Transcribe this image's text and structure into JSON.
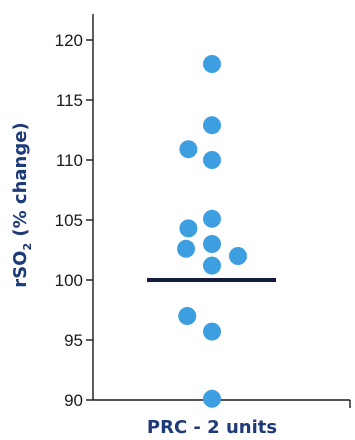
{
  "chart_data": {
    "type": "scatter",
    "category": "PRC - 2 units",
    "ylabel_main": "rSO",
    "ylabel_sub": "2",
    "ylabel_rest": " (% change)",
    "ylim": [
      90,
      120
    ],
    "yticks": [
      90,
      95,
      100,
      105,
      110,
      115,
      120
    ],
    "points": [
      {
        "x": 0.0,
        "y": 118.0
      },
      {
        "x": 0.0,
        "y": 112.9
      },
      {
        "x": -0.2,
        "y": 110.9
      },
      {
        "x": 0.0,
        "y": 110.0
      },
      {
        "x": 0.0,
        "y": 105.1
      },
      {
        "x": -0.2,
        "y": 104.3
      },
      {
        "x": -0.22,
        "y": 102.6
      },
      {
        "x": 0.0,
        "y": 103.0
      },
      {
        "x": 0.22,
        "y": 102.0
      },
      {
        "x": 0.0,
        "y": 101.2
      },
      {
        "x": -0.21,
        "y": 97.0
      },
      {
        "x": 0.0,
        "y": 95.7
      },
      {
        "x": 0.0,
        "y": 90.1
      }
    ],
    "reference_line": 100,
    "colors": {
      "point": "#3d9fe0",
      "line": "#141c3e",
      "axis": "#1a1a1a",
      "label": "#1f3a78"
    }
  }
}
